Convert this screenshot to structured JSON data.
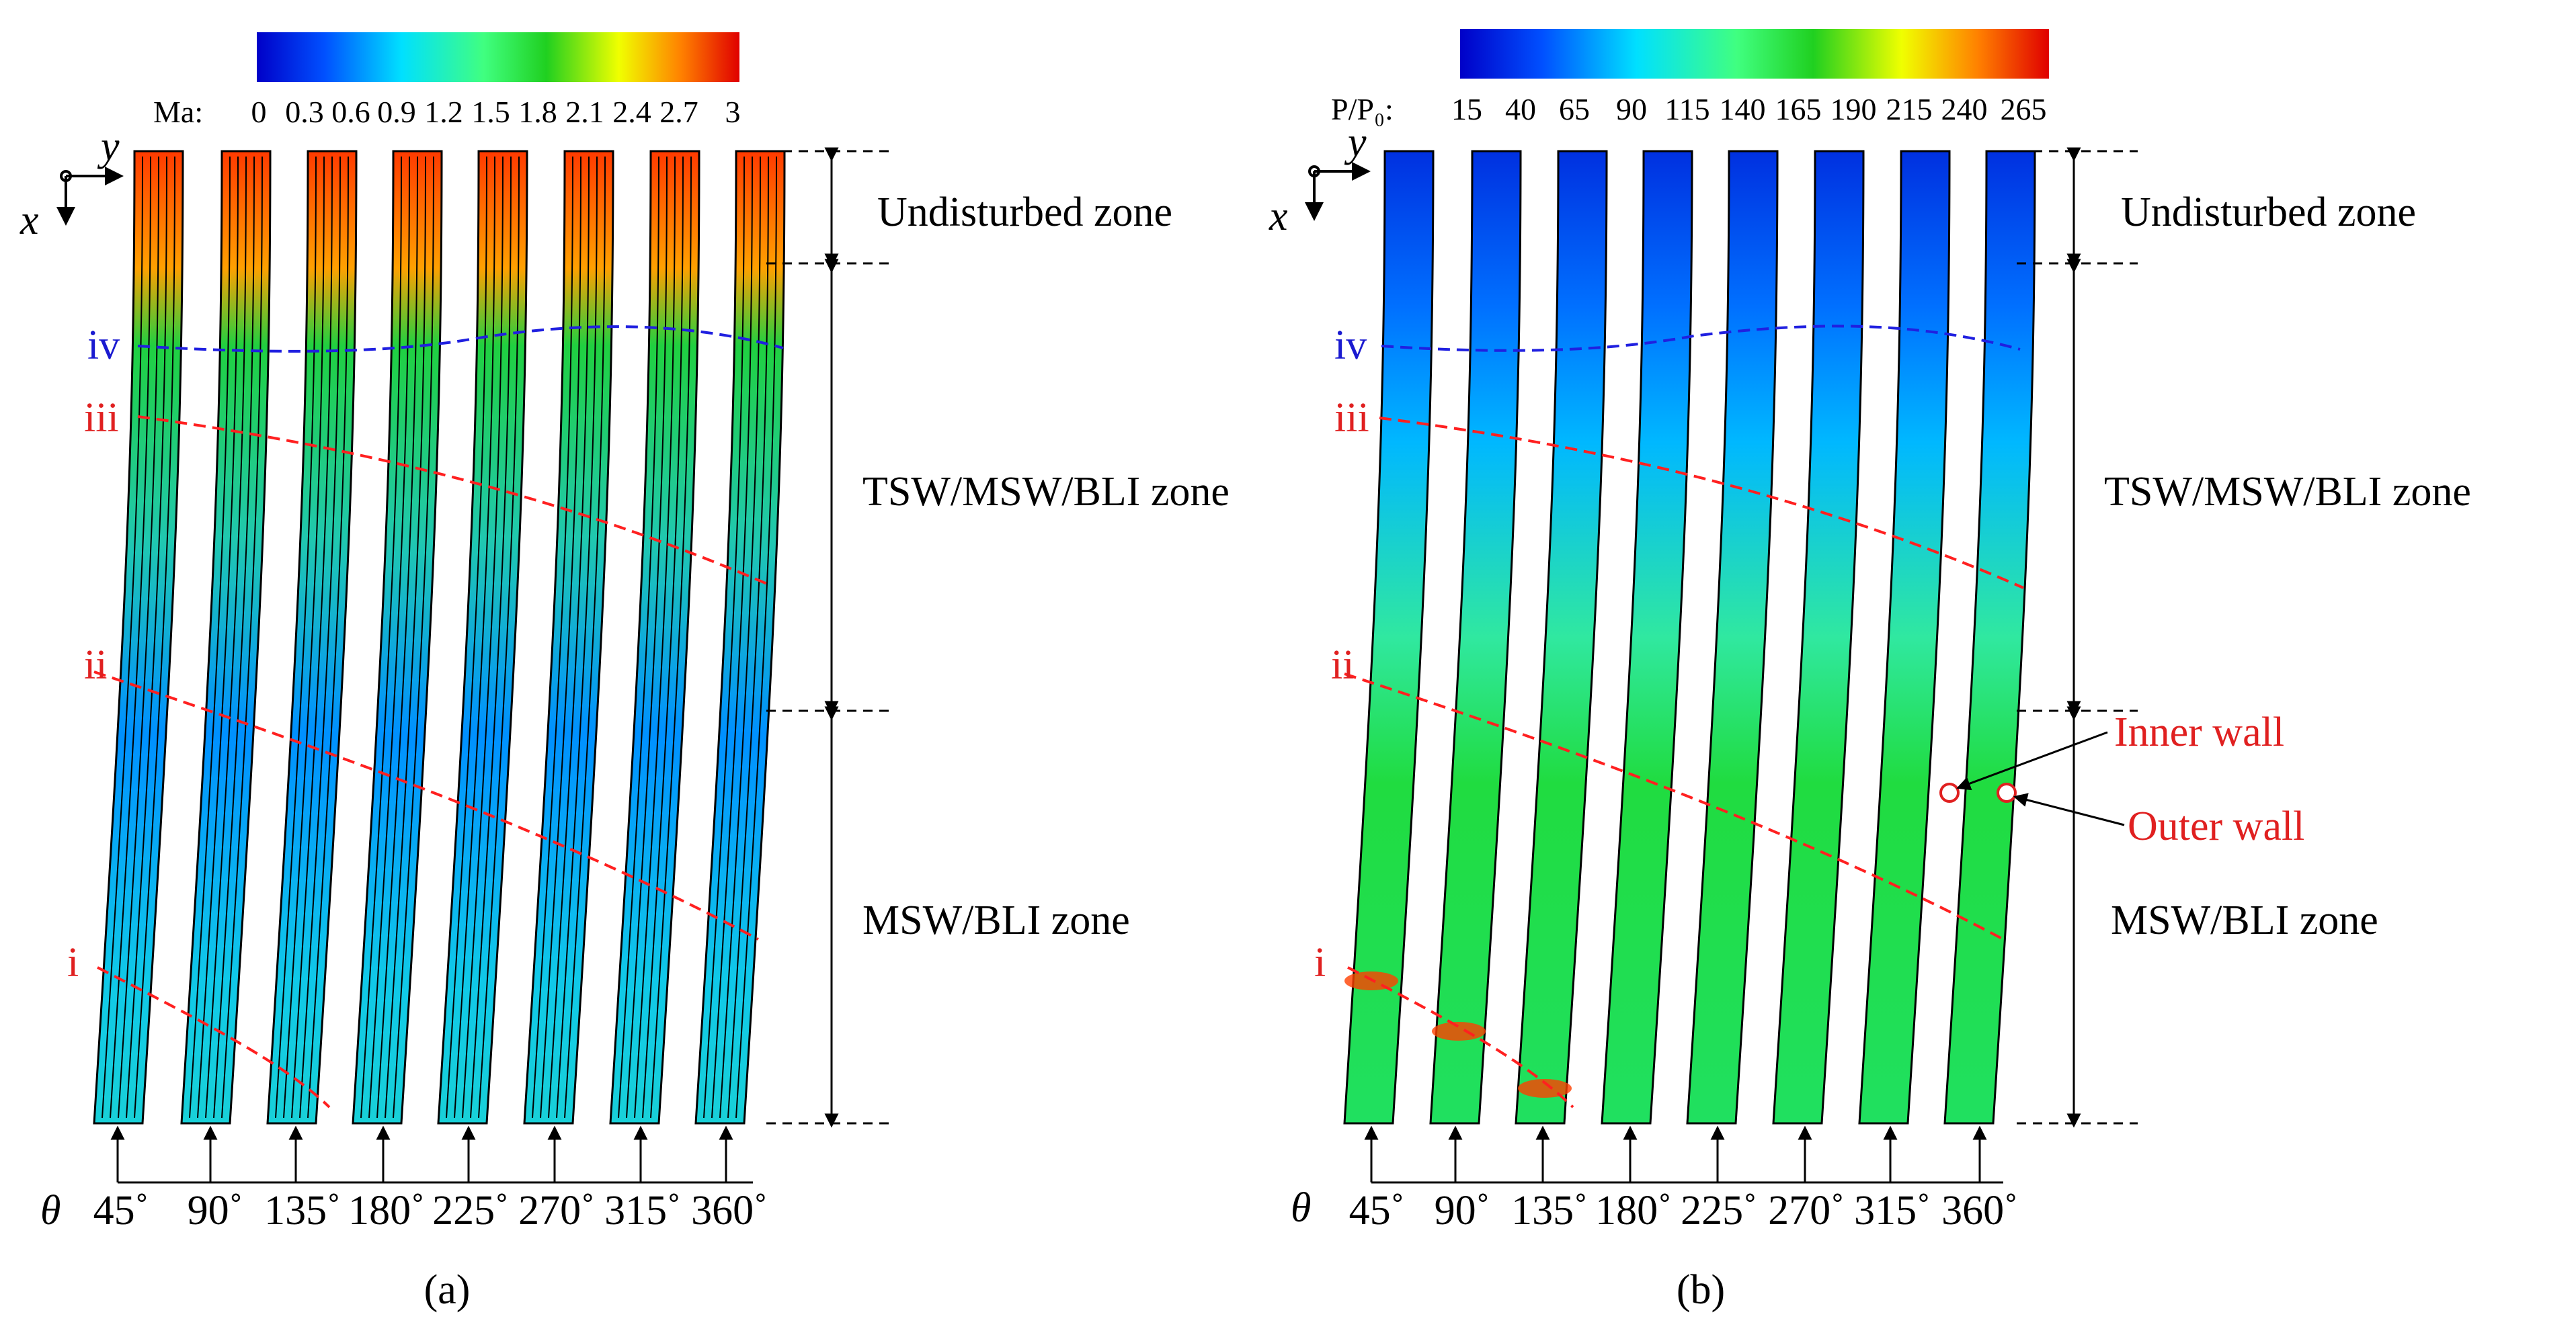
{
  "colors": {
    "red": "#e02020",
    "blue": "#1a1ad0"
  },
  "panels": [
    {
      "id": "a",
      "caption": "(a)",
      "colorbar": {
        "label": "Ma:",
        "ticks": [
          "0",
          "0.3",
          "0.6",
          "0.9",
          "1.2",
          "1.5",
          "1.8",
          "2.1",
          "2.4",
          "2.7",
          "3"
        ]
      },
      "axes": {
        "x": "x",
        "y": "y"
      },
      "theta_symbol": "θ",
      "angles": [
        "45˚",
        "90˚",
        "135˚",
        "180˚",
        "225˚",
        "270˚",
        "315˚",
        "360˚"
      ],
      "section_labels": [
        "iv",
        "iii",
        "ii",
        "i"
      ],
      "zones": [
        "Undisturbed zone",
        "TSW/MSW/BLI zone",
        "MSW/BLI zone"
      ]
    },
    {
      "id": "b",
      "caption": "(b)",
      "colorbar": {
        "label": "P/P₀:",
        "ticks": [
          "15",
          "40",
          "65",
          "90",
          "115",
          "140",
          "165",
          "190",
          "215",
          "240",
          "265"
        ]
      },
      "axes": {
        "x": "x",
        "y": "y"
      },
      "theta_symbol": "θ",
      "angles": [
        "45˚",
        "90˚",
        "135˚",
        "180˚",
        "225˚",
        "270˚",
        "315˚",
        "360˚"
      ],
      "section_labels": [
        "iv",
        "iii",
        "ii",
        "i"
      ],
      "zones": [
        "Undisturbed zone",
        "TSW/MSW/BLI zone",
        "MSW/BLI zone"
      ],
      "wall_labels": [
        "Inner wall",
        "Outer wall"
      ]
    }
  ]
}
